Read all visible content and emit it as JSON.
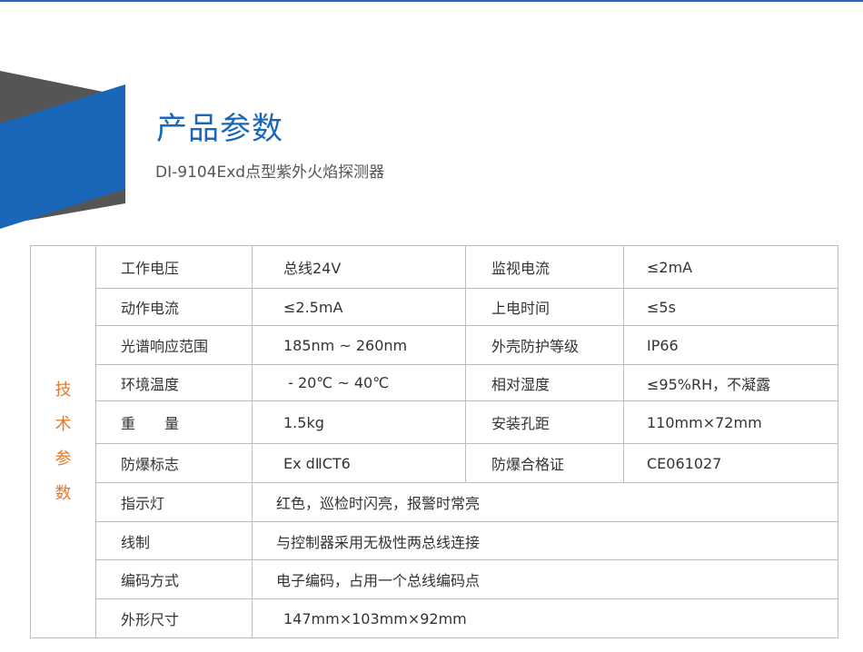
{
  "header": {
    "title": "产品参数",
    "subtitle": "DI-9104Exd点型紫外火焰探测器"
  },
  "colors": {
    "accent": "#1a66b8",
    "dark_band": "#555555",
    "side_label": "#e8792a",
    "border": "#bdbdbd"
  },
  "specs": {
    "side_label": [
      "技",
      "术",
      "参",
      "数"
    ],
    "paired_rows": [
      {
        "k1": "工作电压",
        "v1": "总线24V",
        "k2": "监视电流",
        "v2": "≤2mA"
      },
      {
        "k1": "动作电流",
        "v1": "≤2.5mA",
        "k2": "上电时间",
        "v2": "≤5s"
      },
      {
        "k1": "光谱响应范围",
        "v1": "185nm ~ 260nm",
        "k2": "外壳防护等级",
        "v2": "IP66"
      },
      {
        "k1": "环境温度",
        "v1": " - 20℃ ~ 40℃",
        "k2": "相对湿度",
        "v2": "≤95%RH，不凝露"
      },
      {
        "k1": "重　　量",
        "v1": "1.5kg",
        "k2": "安装孔距",
        "v2": "110mm×72mm"
      },
      {
        "k1": "防爆标志",
        "v1": "Ex dⅡCT6",
        "k2": "防爆合格证",
        "v2": "CE061027"
      }
    ],
    "wide_rows": [
      {
        "k": "指示灯",
        "v": "红色，巡检时闪亮，报警时常亮"
      },
      {
        "k": "线制",
        "v": "与控制器采用无极性两总线连接"
      },
      {
        "k": "编码方式",
        "v": "电子编码，占用一个总线编码点"
      },
      {
        "k": "外形尺寸",
        "v": "147mm×103mm×92mm"
      }
    ]
  }
}
